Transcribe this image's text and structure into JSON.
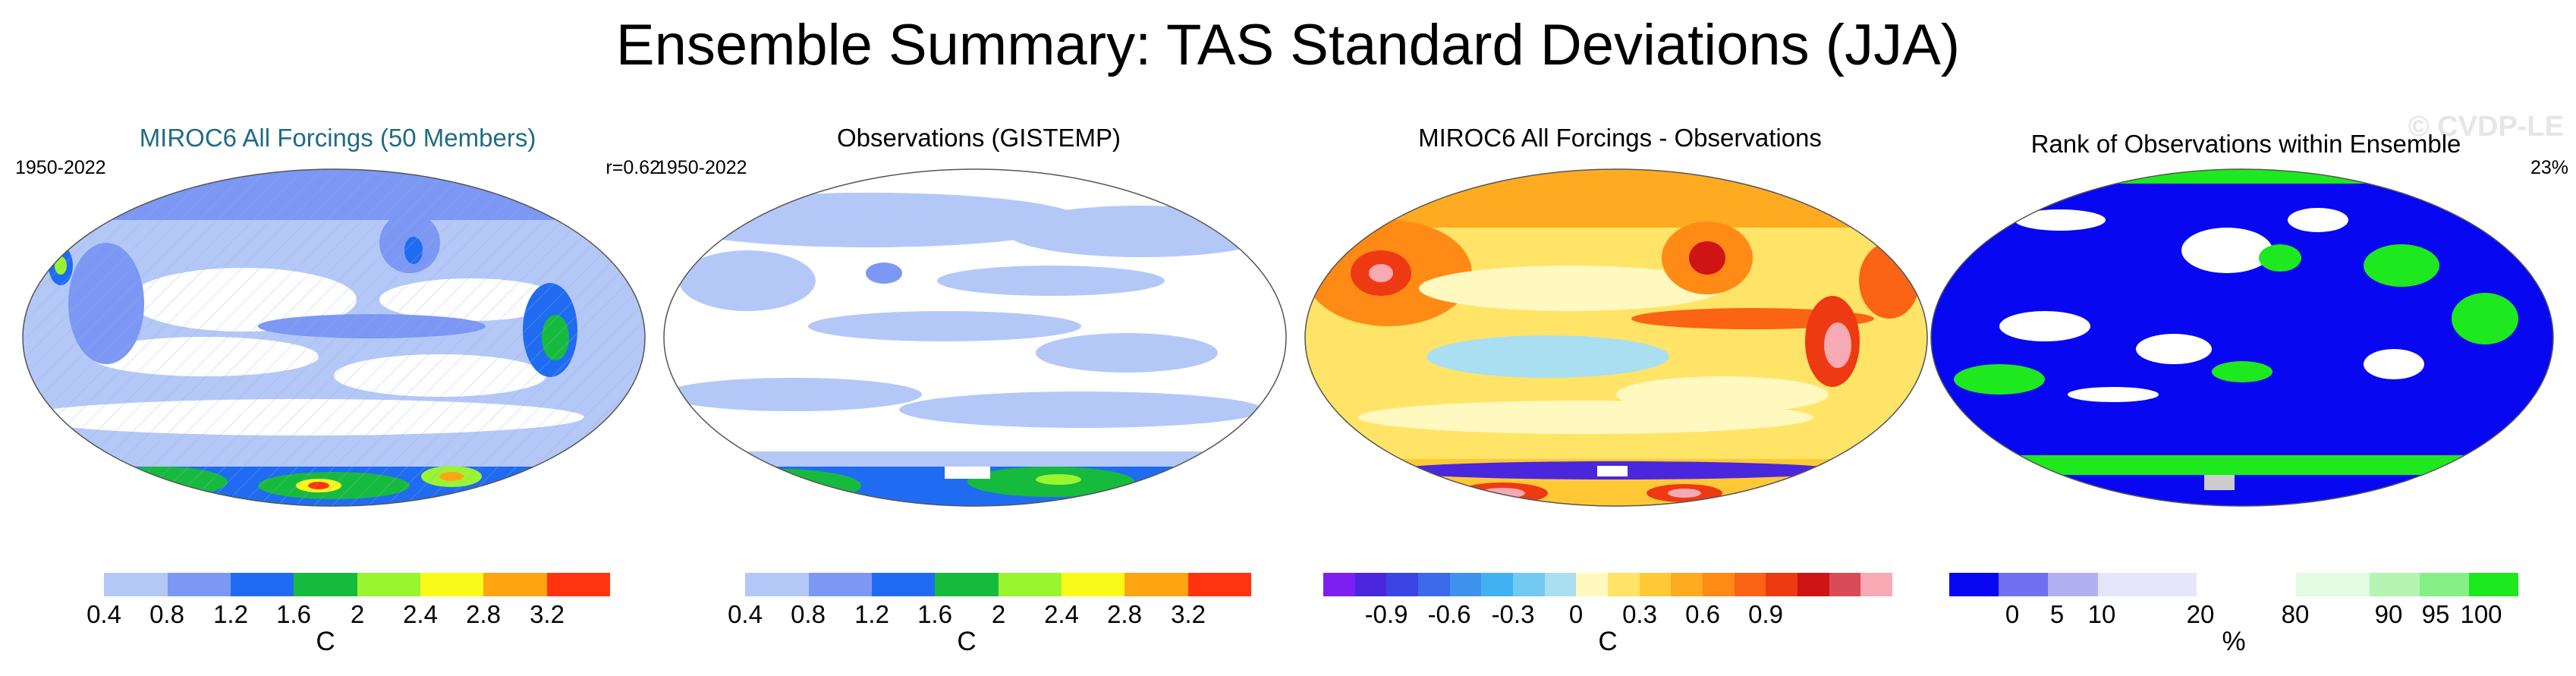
{
  "title": "Ensemble Summary: TAS Standard Deviations (JJA)",
  "watermark": "© CVDP-LE",
  "panels": [
    {
      "title": "MIROC6 All Forcings (50 Members)",
      "left": "1950-2022",
      "right": "r=0.62",
      "unit": "C",
      "colors": [
        "#ffffff",
        "#b4c8f8",
        "#7c98f4",
        "#1f6cf2",
        "#16bb3e",
        "#9af531",
        "#fafa1a",
        "#ffa511",
        "#ff330f"
      ],
      "ticks": [
        "0.4",
        "0.8",
        "1.2",
        "1.6",
        "2",
        "2.4",
        "2.8",
        "3.2"
      ]
    },
    {
      "title": "Observations (GISTEMP)",
      "left": "1950-2022",
      "right": "",
      "unit": "C",
      "colors": [
        "#ffffff",
        "#b4c8f8",
        "#7c98f4",
        "#1f6cf2",
        "#16bb3e",
        "#9af531",
        "#fafa1a",
        "#ffa511",
        "#ff330f"
      ],
      "ticks": [
        "0.4",
        "0.8",
        "1.2",
        "1.6",
        "2",
        "2.4",
        "2.8",
        "3.2"
      ]
    },
    {
      "title": "MIROC6 All Forcings - Observations",
      "left": "",
      "right": "",
      "unit": "C",
      "colors": [
        "#7d1ff0",
        "#4a26dc",
        "#3a45e4",
        "#3c6ae8",
        "#3f92ee",
        "#42b1f2",
        "#72c9f2",
        "#a9dff0",
        "#fff9c0",
        "#ffe467",
        "#ffc936",
        "#ffab22",
        "#ff8a16",
        "#fa6414",
        "#ee3a12",
        "#cf1414",
        "#d84b57",
        "#f7aab3"
      ],
      "ticks": [
        "-0.9",
        "-0.6",
        "-0.3",
        "0",
        "0.3",
        "0.6",
        "0.9"
      ]
    },
    {
      "title": "Rank of Observations within Ensemble",
      "left": "",
      "right": "23%",
      "unit": "%",
      "colors": [
        "#0707f2",
        "#7070f0",
        "#b0b0f2",
        "#e6e6fa",
        "#ffffff",
        "#e4fbe4",
        "#b4f5b4",
        "#86f086",
        "#1ee81e"
      ],
      "ticks": [
        "0",
        "5",
        "10",
        "20",
        "80",
        "90",
        "95",
        "100"
      ]
    }
  ]
}
